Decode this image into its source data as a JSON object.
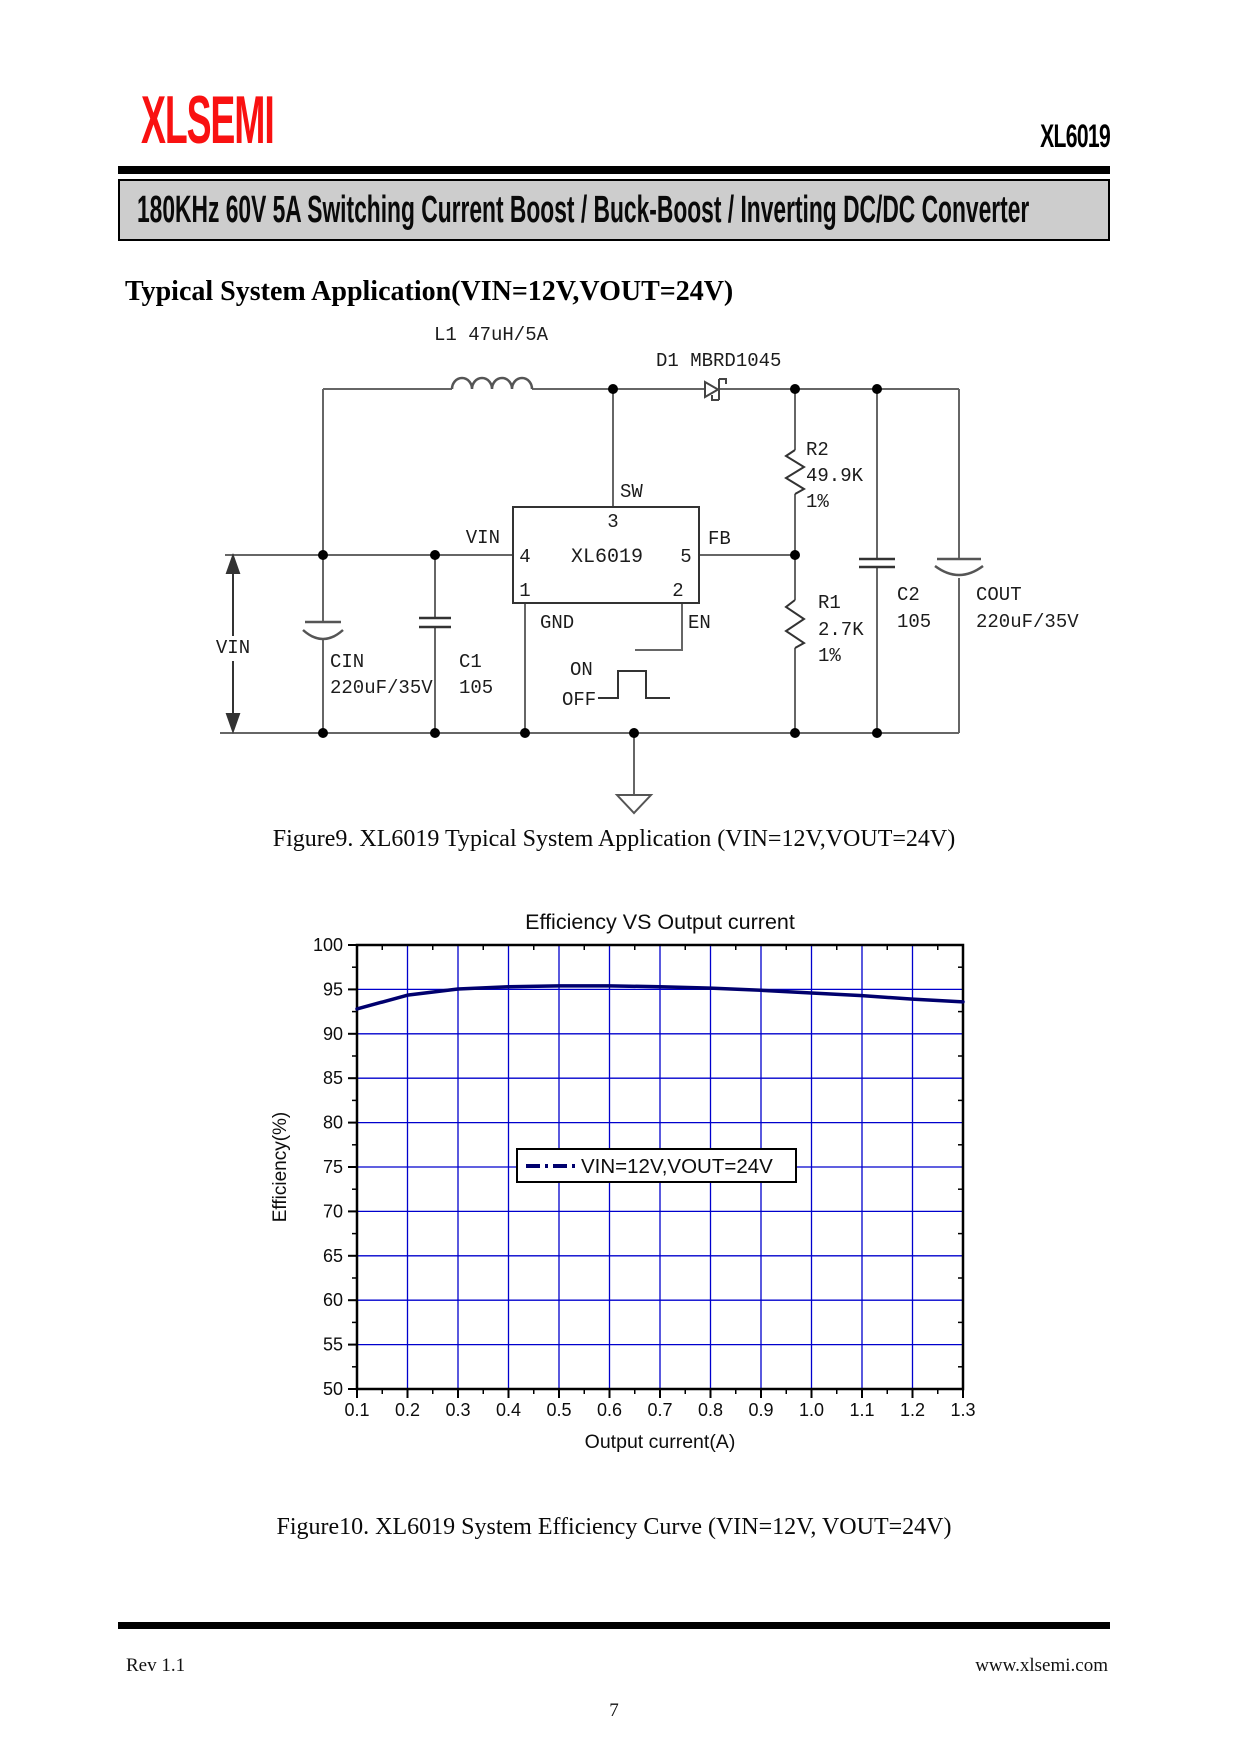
{
  "header": {
    "logo": "XLSEMI",
    "logo_color": "#F91111",
    "part_number": "XL6019",
    "banner": "180KHz 60V 5A Switching Current Boost / Buck-Boost / Inverting DC/DC Converter",
    "banner_bg": "#CDCDCD"
  },
  "section_title": "Typical System Application(VIN=12V,VOUT=24V)",
  "schematic": {
    "inductor_label": "L1 47uH/5A",
    "diode_label": "D1 MBRD1045",
    "vin_source_label": "VIN",
    "chip": {
      "name": "XL6019",
      "pin1": "1",
      "pin2": "2",
      "pin3": "3",
      "pin4": "4",
      "pin5": "5",
      "sw_label": "SW",
      "vin_label": "VIN",
      "fb_label": "FB",
      "gnd_label": "GND",
      "en_label": "EN"
    },
    "on_label": "ON",
    "off_label": "OFF",
    "cin": {
      "name": "CIN",
      "value": "220uF/35V"
    },
    "c1": {
      "name": "C1",
      "value": "105"
    },
    "c2": {
      "name": "C2",
      "value": "105"
    },
    "cout": {
      "name": "COUT",
      "value": "220uF/35V"
    },
    "r1": {
      "name": "R1",
      "value": "2.7K",
      "tolerance": "1%"
    },
    "r2": {
      "name": "R2",
      "value": "49.9K",
      "tolerance": "1%"
    }
  },
  "figure9_caption": "Figure9. XL6019 Typical System Application (VIN=12V,VOUT=24V)",
  "chart_data": {
    "type": "line",
    "title": "Efficiency VS Output current",
    "xlabel": "Output current(A)",
    "ylabel": "Efficiency(%)",
    "xlim": [
      0.1,
      1.3
    ],
    "ylim": [
      50,
      100
    ],
    "x_ticks": [
      0.1,
      0.2,
      0.3,
      0.4,
      0.5,
      0.6,
      0.7,
      0.8,
      0.9,
      1.0,
      1.1,
      1.2,
      1.3
    ],
    "y_ticks": [
      50,
      55,
      60,
      65,
      70,
      75,
      80,
      85,
      90,
      95,
      100
    ],
    "grid": true,
    "legend_position": "center",
    "colors": {
      "grid": "#0000CD",
      "line": "#00006E",
      "axis": "#000000"
    },
    "series": [
      {
        "name": "VIN=12V,VOUT=24V",
        "x": [
          0.1,
          0.2,
          0.3,
          0.4,
          0.5,
          0.6,
          0.7,
          0.8,
          0.9,
          1.0,
          1.1,
          1.2,
          1.3
        ],
        "y": [
          92.8,
          94.35,
          95.05,
          95.3,
          95.4,
          95.4,
          95.3,
          95.15,
          94.9,
          94.6,
          94.3,
          93.9,
          93.6
        ]
      }
    ]
  },
  "figure10_caption": "Figure10. XL6019 System Efficiency Curve (VIN=12V, VOUT=24V)",
  "footer": {
    "revision": "Rev 1.1",
    "website": "www.xlsemi.com",
    "page_number": "7"
  }
}
